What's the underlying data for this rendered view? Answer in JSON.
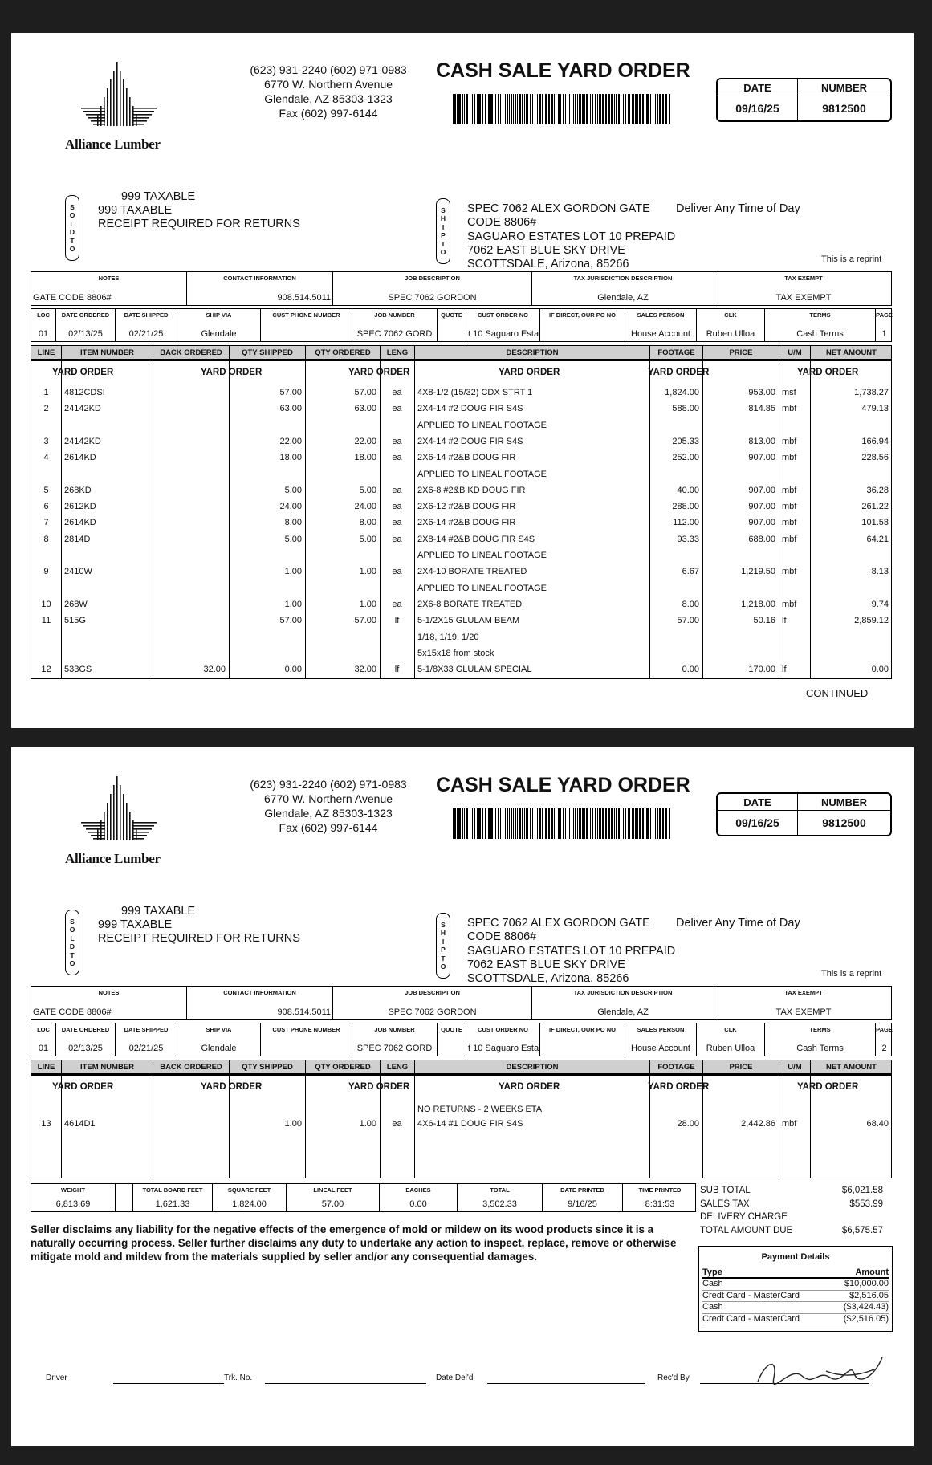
{
  "header": {
    "phones": "(623) 931-2240  (602) 971-0983",
    "street": "6770 W. Northern Avenue",
    "city": "Glendale, AZ 85303-1323",
    "fax": "Fax (602) 997-6144",
    "title": "CASH SALE YARD ORDER",
    "logo_text": "Alliance Lumber",
    "date_label": "DATE",
    "number_label": "NUMBER",
    "date": "09/16/25",
    "number": "9812500",
    "sold_to_label": "SOLDTO",
    "sold_to": [
      "999 TAXABLE",
      "999 TAXABLE",
      "RECEIPT REQUIRED FOR RETURNS"
    ],
    "ship_to_label": "SHIPTO",
    "ship_to": [
      "SPEC 7062  ALEX GORDON GATE",
      "CODE 8806#",
      "SAGUARO ESTATES LOT 10  PREPAID",
      "7062 EAST BLUE SKY DRIVE",
      "SCOTTSDALE, Arizona, 85266"
    ],
    "deliver": "Deliver Any Time of Day",
    "reprint": "This is a reprint",
    "info1": [
      {
        "label": "NOTES",
        "value": "GATE CODE 8806#"
      },
      {
        "label": "CONTACT INFORMATION",
        "value": "908.514.5011"
      },
      {
        "label": "JOB DESCRIPTION",
        "value": "SPEC 7062 GORDON"
      },
      {
        "label": "TAX JURISDICTION DESCRIPTION",
        "value": "Glendale, AZ"
      },
      {
        "label": "TAX EXEMPT",
        "value": "TAX EXEMPT"
      }
    ],
    "info2": [
      {
        "label": "LOC",
        "value": "01"
      },
      {
        "label": "DATE ORDERED",
        "value": "02/13/25"
      },
      {
        "label": "DATE SHIPPED",
        "value": "02/21/25"
      },
      {
        "label": "SHIP VIA",
        "value": "Glendale"
      },
      {
        "label": "CUST PHONE NUMBER",
        "value": ""
      },
      {
        "label": "JOB NUMBER",
        "value": "SPEC 7062 GORD"
      },
      {
        "label": "QUOTE",
        "value": ""
      },
      {
        "label": "CUST ORDER NO",
        "value": "t 10 Saguaro Esta"
      },
      {
        "label": "IF DIRECT, OUR PO NO",
        "value": ""
      },
      {
        "label": "SALES PERSON",
        "value": "House Account"
      },
      {
        "label": "CLK",
        "value": "Ruben Ulloa"
      },
      {
        "label": "TERMS",
        "value": "Cash Terms"
      },
      {
        "label": "PAGE",
        "value": ""
      }
    ],
    "columns": [
      "LINE",
      "ITEM NUMBER",
      "BACK ORDERED",
      "QTY SHIPPED",
      "QTY ORDERED",
      "LENG",
      "DESCRIPTION",
      "FOOTAGE",
      "PRICE",
      "U/M",
      "NET AMOUNT"
    ],
    "yard_order": "YARD ORDER"
  },
  "pages": [
    {
      "page": "1",
      "rows": [
        {
          "line": "1",
          "item": "4812CDSI",
          "back": "",
          "shipped": "57.00",
          "ordered": "57.00",
          "leng": "ea",
          "desc": "4X8-1/2 (15/32) CDX STRT 1",
          "footage": "1,824.00",
          "price": "953.00",
          "um": "msf",
          "net": "1,738.27"
        },
        {
          "line": "2",
          "item": "24142KD",
          "back": "",
          "shipped": "63.00",
          "ordered": "63.00",
          "leng": "ea",
          "desc": "2X4-14 #2 DOUG FIR S4S",
          "footage": "588.00",
          "price": "814.85",
          "um": "mbf",
          "net": "479.13"
        },
        {
          "desc": "APPLIED TO LINEAL FOOTAGE"
        },
        {
          "line": "3",
          "item": "24142KD",
          "back": "",
          "shipped": "22.00",
          "ordered": "22.00",
          "leng": "ea",
          "desc": "2X4-14 #2 DOUG FIR S4S",
          "footage": "205.33",
          "price": "813.00",
          "um": "mbf",
          "net": "166.94"
        },
        {
          "line": "4",
          "item": "2614KD",
          "back": "",
          "shipped": "18.00",
          "ordered": "18.00",
          "leng": "ea",
          "desc": "2X6-14 #2&B DOUG FIR",
          "footage": "252.00",
          "price": "907.00",
          "um": "mbf",
          "net": "228.56"
        },
        {
          "desc": "APPLIED TO LINEAL FOOTAGE"
        },
        {
          "line": "5",
          "item": "268KD",
          "back": "",
          "shipped": "5.00",
          "ordered": "5.00",
          "leng": "ea",
          "desc": "2X6-8 #2&B KD DOUG FIR",
          "footage": "40.00",
          "price": "907.00",
          "um": "mbf",
          "net": "36.28"
        },
        {
          "line": "6",
          "item": "2612KD",
          "back": "",
          "shipped": "24.00",
          "ordered": "24.00",
          "leng": "ea",
          "desc": "2X6-12 #2&B DOUG FIR",
          "footage": "288.00",
          "price": "907.00",
          "um": "mbf",
          "net": "261.22"
        },
        {
          "line": "7",
          "item": "2614KD",
          "back": "",
          "shipped": "8.00",
          "ordered": "8.00",
          "leng": "ea",
          "desc": "2X6-14 #2&B DOUG FIR",
          "footage": "112.00",
          "price": "907.00",
          "um": "mbf",
          "net": "101.58"
        },
        {
          "line": "8",
          "item": "2814D",
          "back": "",
          "shipped": "5.00",
          "ordered": "5.00",
          "leng": "ea",
          "desc": "2X8-14 #2&B DOUG FIR S4S",
          "footage": "93.33",
          "price": "688.00",
          "um": "mbf",
          "net": "64.21"
        },
        {
          "desc": "APPLIED TO LINEAL FOOTAGE"
        },
        {
          "line": "9",
          "item": "2410W",
          "back": "",
          "shipped": "1.00",
          "ordered": "1.00",
          "leng": "ea",
          "desc": "2X4-10 BORATE TREATED",
          "footage": "6.67",
          "price": "1,219.50",
          "um": "mbf",
          "net": "8.13"
        },
        {
          "desc": "APPLIED TO LINEAL FOOTAGE"
        },
        {
          "line": "10",
          "item": "268W",
          "back": "",
          "shipped": "1.00",
          "ordered": "1.00",
          "leng": "ea",
          "desc": "2X6-8 BORATE TREATED",
          "footage": "8.00",
          "price": "1,218.00",
          "um": "mbf",
          "net": "9.74"
        },
        {
          "line": "11",
          "item": "515G",
          "back": "",
          "shipped": "57.00",
          "ordered": "57.00",
          "leng": "lf",
          "desc": "5-1/2X15 GLULAM BEAM",
          "footage": "57.00",
          "price": "50.16",
          "um": "lf",
          "net": "2,859.12"
        },
        {
          "desc": " 1/18, 1/19, 1/20"
        },
        {
          "desc": "5x15x18 from stock"
        },
        {
          "line": "12",
          "item": "533GS",
          "back": "32.00",
          "shipped": "0.00",
          "ordered": "32.00",
          "leng": "lf",
          "desc": "5-1/8X33 GLULAM SPECIAL",
          "footage": "0.00",
          "price": "170.00",
          "um": "lf",
          "net": "0.00"
        }
      ],
      "continued": "CONTINUED"
    },
    {
      "page": "2",
      "rows": [
        {
          "desc": "NO RETURNS - 2 WEEKS ETA"
        },
        {
          "line": "13",
          "item": "4614D1",
          "back": "",
          "shipped": "1.00",
          "ordered": "1.00",
          "leng": "ea",
          "desc": "4X6-14 #1 DOUG FIR S4S",
          "footage": "28.00",
          "price": "2,442.86",
          "um": "mbf",
          "net": "68.40"
        }
      ],
      "totals": [
        {
          "label": "WEIGHT",
          "value": "6,813.69"
        },
        {
          "label": "",
          "value": ""
        },
        {
          "label": "TOTAL BOARD FEET",
          "value": "1,621.33"
        },
        {
          "label": "SQUARE FEET",
          "value": "1,824.00"
        },
        {
          "label": "LINEAL FEET",
          "value": "57.00"
        },
        {
          "label": "EACHES",
          "value": "0.00"
        },
        {
          "label": "TOTAL",
          "value": "3,502.33"
        },
        {
          "label": "DATE PRINTED",
          "value": "9/16/25"
        },
        {
          "label": "TIME PRINTED",
          "value": "8:31:53"
        }
      ],
      "summary": [
        {
          "label": "SUB TOTAL",
          "value": "$6,021.58"
        },
        {
          "label": "SALES TAX",
          "value": "$553.99"
        },
        {
          "label": "DELIVERY CHARGE",
          "value": ""
        },
        {
          "label": "TOTAL AMOUNT DUE",
          "value": "$6,575.57"
        }
      ],
      "disclaimer": "Seller disclaims any liability for the negative effects of the emergence of mold or mildew on its wood products since it is a naturally occurring process. Seller further disclaims any duty to undertake any action to inspect, replace, remove or otherwise mitigate mold and mildew from the materials supplied by seller and/or any consequential damages.",
      "payment": {
        "title": "Payment Details",
        "type_label": "Type",
        "amount_label": "Amount",
        "rows": [
          {
            "type": "Cash",
            "amount": "$10,000.00"
          },
          {
            "type": "Credt Card - MasterCard",
            "amount": "$2,516.05"
          },
          {
            "type": "Cash",
            "amount": "($3,424.43)"
          },
          {
            "type": "Credt Card - MasterCard",
            "amount": "($2,516.05)"
          }
        ]
      },
      "signatures": {
        "driver": "Driver",
        "truck": "Trk. No.",
        "date": "Date Del'd",
        "received": "Rec'd By"
      }
    }
  ]
}
